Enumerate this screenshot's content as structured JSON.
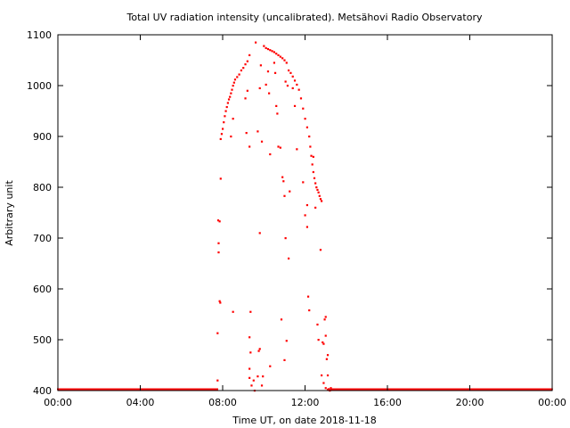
{
  "chart_data": {
    "type": "scatter",
    "title": "Total UV radiation intensity (uncalibrated). Metsähovi Radio Observatory",
    "xlabel": "Time UT, on date 2018-11-18",
    "ylabel": "Arbitrary unit",
    "x_unit": "hours UT",
    "xlim": [
      0,
      24
    ],
    "ylim": [
      400,
      1100
    ],
    "x_ticks": [
      0,
      4,
      8,
      12,
      16,
      20,
      24
    ],
    "x_tick_labels": [
      "00:00",
      "04:00",
      "08:00",
      "12:00",
      "16:00",
      "20:00",
      "00:00"
    ],
    "y_ticks": [
      400,
      500,
      600,
      700,
      800,
      900,
      1000,
      1100
    ],
    "y_tick_labels": [
      "400",
      "500",
      "600",
      "700",
      "800",
      "900",
      "1000",
      "1100"
    ],
    "grid": false,
    "legend": "none",
    "marker_color": "#ff0000",
    "series": [
      {
        "points": [
          [
            7.75,
            420
          ],
          [
            7.75,
            513
          ],
          [
            7.8,
            672
          ],
          [
            7.8,
            690
          ],
          [
            7.78,
            735
          ],
          [
            7.85,
            733
          ],
          [
            7.85,
            576
          ],
          [
            7.88,
            573
          ],
          [
            7.9,
            817
          ],
          [
            7.9,
            895
          ],
          [
            7.95,
            905
          ],
          [
            8.0,
            915
          ],
          [
            8.05,
            928
          ],
          [
            8.1,
            940
          ],
          [
            8.15,
            950
          ],
          [
            8.2,
            958
          ],
          [
            8.25,
            966
          ],
          [
            8.3,
            973
          ],
          [
            8.35,
            978
          ],
          [
            8.4,
            985
          ],
          [
            8.45,
            992
          ],
          [
            8.5,
            1000
          ],
          [
            8.55,
            1006
          ],
          [
            8.6,
            1012
          ],
          [
            8.7,
            1017
          ],
          [
            8.8,
            1022
          ],
          [
            8.9,
            1030
          ],
          [
            9.0,
            1035
          ],
          [
            9.1,
            1042
          ],
          [
            9.2,
            1048
          ],
          [
            9.3,
            1060
          ],
          [
            8.4,
            900
          ],
          [
            8.5,
            935
          ],
          [
            8.5,
            555
          ],
          [
            9.1,
            975
          ],
          [
            9.2,
            990
          ],
          [
            9.15,
            907
          ],
          [
            9.3,
            880
          ],
          [
            9.35,
            555
          ],
          [
            9.3,
            505
          ],
          [
            9.35,
            475
          ],
          [
            9.3,
            443
          ],
          [
            9.3,
            425
          ],
          [
            9.4,
            410
          ],
          [
            9.6,
            1085
          ],
          [
            9.8,
            995
          ],
          [
            9.8,
            710
          ],
          [
            9.7,
            910
          ],
          [
            9.9,
            890
          ],
          [
            9.85,
            1040
          ],
          [
            9.5,
            420
          ],
          [
            9.55,
            400
          ],
          [
            9.7,
            428
          ],
          [
            9.8,
            482
          ],
          [
            9.75,
            478
          ],
          [
            9.9,
            410
          ],
          [
            9.95,
            428
          ],
          [
            10.0,
            1078
          ],
          [
            10.1,
            1074
          ],
          [
            10.2,
            1072
          ],
          [
            10.3,
            1070
          ],
          [
            10.4,
            1068
          ],
          [
            10.5,
            1066
          ],
          [
            10.6,
            1063
          ],
          [
            10.7,
            1060
          ],
          [
            10.8,
            1057
          ],
          [
            10.9,
            1054
          ],
          [
            11.0,
            1050
          ],
          [
            10.1,
            1002
          ],
          [
            10.25,
            985
          ],
          [
            10.3,
            865
          ],
          [
            10.2,
            1028
          ],
          [
            10.3,
            448
          ],
          [
            10.5,
            1045
          ],
          [
            10.55,
            1025
          ],
          [
            10.6,
            960
          ],
          [
            10.65,
            945
          ],
          [
            10.7,
            880
          ],
          [
            10.8,
            878
          ],
          [
            10.85,
            540
          ],
          [
            10.9,
            820
          ],
          [
            10.95,
            812
          ],
          [
            11.0,
            783
          ],
          [
            11.0,
            460
          ],
          [
            11.05,
            700
          ],
          [
            11.1,
            498
          ],
          [
            11.05,
            1008
          ],
          [
            11.1,
            1045
          ],
          [
            11.15,
            1000
          ],
          [
            11.2,
            660
          ],
          [
            11.25,
            792
          ],
          [
            11.2,
            1030
          ],
          [
            11.3,
            1025
          ],
          [
            11.4,
            1018
          ],
          [
            11.5,
            1010
          ],
          [
            11.6,
            1002
          ],
          [
            11.7,
            992
          ],
          [
            11.8,
            975
          ],
          [
            11.9,
            955
          ],
          [
            12.0,
            935
          ],
          [
            12.1,
            918
          ],
          [
            12.2,
            900
          ],
          [
            12.25,
            880
          ],
          [
            12.3,
            862
          ],
          [
            12.35,
            845
          ],
          [
            12.4,
            830
          ],
          [
            12.45,
            818
          ],
          [
            12.5,
            808
          ],
          [
            12.55,
            800
          ],
          [
            12.6,
            795
          ],
          [
            12.65,
            790
          ],
          [
            12.7,
            783
          ],
          [
            12.75,
            777
          ],
          [
            12.8,
            773
          ],
          [
            11.4,
            995
          ],
          [
            11.5,
            960
          ],
          [
            11.6,
            875
          ],
          [
            11.9,
            810
          ],
          [
            12.0,
            745
          ],
          [
            12.1,
            765
          ],
          [
            12.1,
            722
          ],
          [
            12.15,
            585
          ],
          [
            12.2,
            558
          ],
          [
            12.4,
            860
          ],
          [
            12.5,
            760
          ],
          [
            12.6,
            530
          ],
          [
            12.65,
            500
          ],
          [
            12.75,
            677
          ],
          [
            12.85,
            495
          ],
          [
            12.9,
            492
          ],
          [
            12.95,
            540
          ],
          [
            13.0,
            545
          ],
          [
            13.0,
            508
          ],
          [
            13.05,
            462
          ],
          [
            13.1,
            470
          ],
          [
            13.1,
            430
          ],
          [
            12.8,
            430
          ],
          [
            12.9,
            415
          ],
          [
            13.0,
            405
          ],
          [
            13.1,
            402
          ],
          [
            13.15,
            403
          ],
          [
            13.25,
            405
          ],
          [
            13.2,
            400
          ]
        ]
      }
    ]
  }
}
